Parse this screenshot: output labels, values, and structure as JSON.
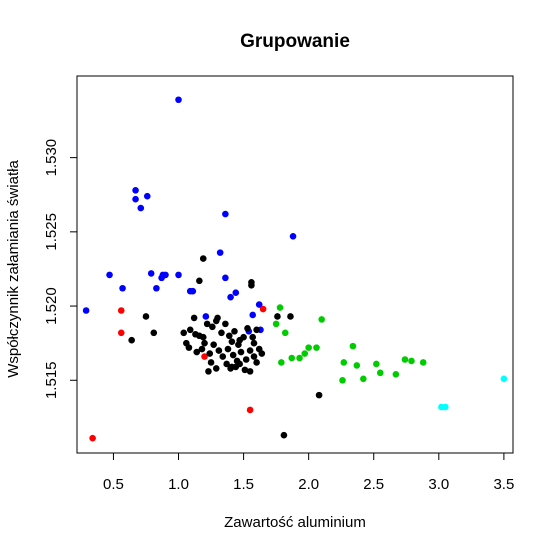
{
  "chart_data": {
    "type": "scatter",
    "title": "Grupowanie",
    "xlabel": "Zawartość aluminium",
    "ylabel": "Współczynnik załamiania światła",
    "xlim": [
      0.22,
      3.57
    ],
    "ylim": [
      1.5101,
      1.5355
    ],
    "x_ticks": [
      0.5,
      1.0,
      1.5,
      2.0,
      2.5,
      3.0,
      3.5
    ],
    "x_tick_labels": [
      "0.5",
      "1.0",
      "1.5",
      "2.0",
      "2.5",
      "3.0",
      "3.5"
    ],
    "y_ticks": [
      1.515,
      1.52,
      1.525,
      1.53
    ],
    "y_tick_labels": [
      "1.515",
      "1.520",
      "1.525",
      "1.530"
    ],
    "grid": false,
    "legend": "none",
    "series": [
      {
        "color": "#0000ff",
        "points": [
          [
            1.0,
            1.5339
          ],
          [
            0.67,
            1.5278
          ],
          [
            0.67,
            1.5272
          ],
          [
            0.71,
            1.5266
          ],
          [
            0.76,
            1.5274
          ],
          [
            1.36,
            1.5262
          ],
          [
            1.88,
            1.5247
          ],
          [
            1.32,
            1.5236
          ],
          [
            0.47,
            1.5221
          ],
          [
            0.79,
            1.5222
          ],
          [
            0.87,
            1.5219
          ],
          [
            0.9,
            1.5221
          ],
          [
            0.88,
            1.5221
          ],
          [
            1.0,
            1.5221
          ],
          [
            1.36,
            1.5219
          ],
          [
            1.09,
            1.521
          ],
          [
            1.11,
            1.521
          ],
          [
            1.44,
            1.5209
          ],
          [
            1.4,
            1.5206
          ],
          [
            0.57,
            1.5212
          ],
          [
            0.83,
            1.5212
          ],
          [
            0.29,
            1.5197
          ],
          [
            1.62,
            1.5201
          ],
          [
            1.57,
            1.5194
          ],
          [
            1.21,
            1.5193
          ],
          [
            1.63,
            1.5184
          ],
          [
            1.54,
            1.5183
          ]
        ]
      },
      {
        "color": "#ff0000",
        "points": [
          [
            0.34,
            1.5111
          ],
          [
            0.56,
            1.5197
          ],
          [
            0.56,
            1.5182
          ],
          [
            1.2,
            1.5166
          ],
          [
            1.55,
            1.513
          ],
          [
            1.65,
            1.5198
          ]
        ]
      },
      {
        "color": "#000000",
        "points": [
          [
            1.19,
            1.5232
          ],
          [
            1.16,
            1.5217
          ],
          [
            1.56,
            1.5216
          ],
          [
            1.56,
            1.5214
          ],
          [
            1.76,
            1.5193
          ],
          [
            1.86,
            1.5193
          ],
          [
            0.75,
            1.5193
          ],
          [
            1.12,
            1.5192
          ],
          [
            1.3,
            1.5192
          ],
          [
            0.81,
            1.5182
          ],
          [
            0.64,
            1.5177
          ],
          [
            1.04,
            1.5182
          ],
          [
            1.06,
            1.5175
          ],
          [
            1.09,
            1.5184
          ],
          [
            1.13,
            1.5181
          ],
          [
            1.16,
            1.518
          ],
          [
            1.19,
            1.5179
          ],
          [
            1.22,
            1.5188
          ],
          [
            1.26,
            1.5186
          ],
          [
            1.29,
            1.519
          ],
          [
            1.33,
            1.5182
          ],
          [
            1.36,
            1.5188
          ],
          [
            1.39,
            1.518
          ],
          [
            1.41,
            1.5176
          ],
          [
            1.43,
            1.5183
          ],
          [
            1.46,
            1.5174
          ],
          [
            1.5,
            1.5179
          ],
          [
            1.53,
            1.5185
          ],
          [
            1.57,
            1.5179
          ],
          [
            1.6,
            1.5184
          ],
          [
            1.08,
            1.5172
          ],
          [
            1.14,
            1.5169
          ],
          [
            1.18,
            1.5171
          ],
          [
            1.24,
            1.5168
          ],
          [
            1.27,
            1.5174
          ],
          [
            1.31,
            1.517
          ],
          [
            1.34,
            1.5166
          ],
          [
            1.38,
            1.5171
          ],
          [
            1.42,
            1.5167
          ],
          [
            1.45,
            1.5163
          ],
          [
            1.48,
            1.5169
          ],
          [
            1.52,
            1.5164
          ],
          [
            1.55,
            1.517
          ],
          [
            1.58,
            1.5166
          ],
          [
            1.62,
            1.5171
          ],
          [
            1.25,
            1.5162
          ],
          [
            1.29,
            1.5158
          ],
          [
            1.37,
            1.5161
          ],
          [
            1.41,
            1.5159
          ],
          [
            1.47,
            1.5161
          ],
          [
            1.23,
            1.5156
          ],
          [
            1.4,
            1.5158
          ],
          [
            1.44,
            1.5159
          ],
          [
            1.51,
            1.5157
          ],
          [
            1.55,
            1.5156
          ],
          [
            1.6,
            1.5162
          ],
          [
            1.64,
            1.5168
          ],
          [
            1.2,
            1.5175
          ],
          [
            1.47,
            1.5177
          ],
          [
            1.58,
            1.5175
          ],
          [
            2.08,
            1.514
          ],
          [
            1.81,
            1.5113
          ]
        ]
      },
      {
        "color": "#00cd00",
        "points": [
          [
            1.78,
            1.5199
          ],
          [
            1.75,
            1.5188
          ],
          [
            1.82,
            1.5182
          ],
          [
            2.1,
            1.5191
          ],
          [
            1.79,
            1.5162
          ],
          [
            1.87,
            1.5165
          ],
          [
            1.93,
            1.5165
          ],
          [
            1.97,
            1.5168
          ],
          [
            2.0,
            1.5172
          ],
          [
            2.06,
            1.5172
          ],
          [
            2.34,
            1.5173
          ],
          [
            2.37,
            1.516
          ],
          [
            2.27,
            1.5162
          ],
          [
            2.26,
            1.515
          ],
          [
            2.42,
            1.5151
          ],
          [
            2.52,
            1.5161
          ],
          [
            2.55,
            1.5155
          ],
          [
            2.67,
            1.5154
          ],
          [
            2.74,
            1.5164
          ],
          [
            2.79,
            1.5163
          ],
          [
            2.88,
            1.5162
          ]
        ]
      },
      {
        "color": "#00ffff",
        "points": [
          [
            3.5,
            1.5151
          ],
          [
            3.02,
            1.5132
          ],
          [
            3.05,
            1.5132
          ]
        ]
      }
    ]
  }
}
